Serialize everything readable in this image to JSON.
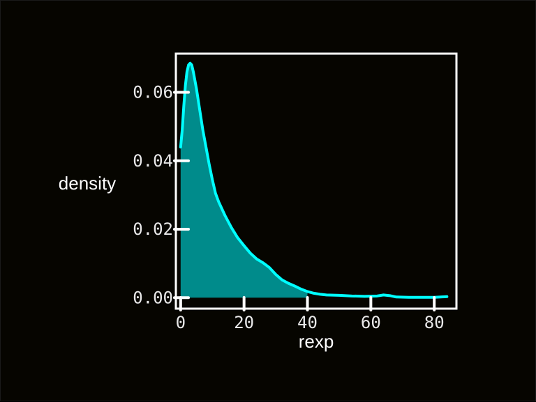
{
  "colors": {
    "background": "#060500",
    "frame": "#ffffff",
    "text": "#ffffff",
    "tick_text": "#e8e8e8",
    "line": "#00ffff",
    "fill": "#008b8b"
  },
  "chart_data": {
    "type": "area",
    "xlabel": "rexp",
    "ylabel": "density",
    "xlim": [
      -1.5,
      87
    ],
    "ylim": [
      -0.0032,
      0.0713
    ],
    "x_ticks": [
      0,
      20,
      40,
      60,
      80
    ],
    "x_tick_labels": [
      "0",
      "20",
      "40",
      "60",
      "80"
    ],
    "y_ticks": [
      0.0,
      0.02,
      0.04,
      0.06
    ],
    "y_tick_labels": [
      "0.00",
      "0.02",
      "0.04",
      "0.06"
    ],
    "grid": false,
    "legend": "none",
    "fill_until_x": 40,
    "series": [
      {
        "x": [
          0,
          0.5,
          1,
          1.5,
          2,
          2.5,
          3,
          3.5,
          4,
          5,
          6,
          7,
          8,
          9,
          10,
          11,
          12,
          14,
          16,
          18,
          20,
          22,
          24,
          26,
          28,
          30,
          32,
          34,
          36,
          38,
          40,
          42,
          44,
          46,
          50,
          54,
          58,
          62,
          64,
          66,
          68,
          72,
          76,
          80,
          84
        ],
        "y": [
          0.044,
          0.049,
          0.056,
          0.062,
          0.066,
          0.068,
          0.0685,
          0.068,
          0.066,
          0.061,
          0.055,
          0.049,
          0.044,
          0.039,
          0.0345,
          0.0305,
          0.028,
          0.024,
          0.0205,
          0.0175,
          0.0152,
          0.013,
          0.0113,
          0.0102,
          0.0088,
          0.0068,
          0.0052,
          0.0042,
          0.0034,
          0.0025,
          0.0018,
          0.0013,
          0.001,
          0.0008,
          0.0007,
          0.0005,
          0.0004,
          0.0005,
          0.0008,
          0.0006,
          0.0002,
          0.0001,
          0.0001,
          0.0001,
          0.0003
        ]
      }
    ]
  }
}
